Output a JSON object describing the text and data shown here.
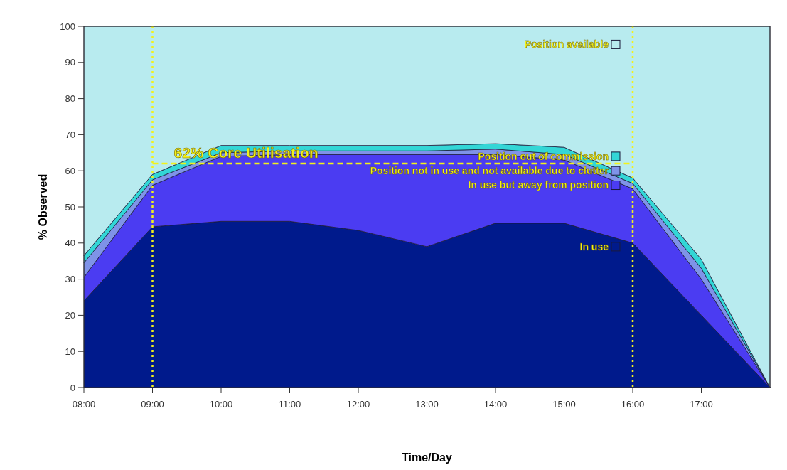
{
  "chart_data": {
    "type": "area",
    "stacked": true,
    "xlabel": "Time/Day",
    "ylabel": "% Observed",
    "x": [
      8,
      9,
      10,
      11,
      12,
      13,
      14,
      15,
      16,
      17,
      18
    ],
    "xlim": [
      8,
      18
    ],
    "xticks": [
      {
        "value": 8,
        "label": "08:00"
      },
      {
        "value": 9,
        "label": "09:00"
      },
      {
        "value": 10,
        "label": "10:00"
      },
      {
        "value": 11,
        "label": "11:00"
      },
      {
        "value": 12,
        "label": "12:00"
      },
      {
        "value": 13,
        "label": "13:00"
      },
      {
        "value": 14,
        "label": "14:00"
      },
      {
        "value": 15,
        "label": "15:00"
      },
      {
        "value": 16,
        "label": "16:00"
      },
      {
        "value": 17,
        "label": "17:00"
      }
    ],
    "ylim": [
      0,
      100
    ],
    "yticks": [
      0,
      10,
      20,
      30,
      40,
      50,
      60,
      70,
      80,
      90,
      100
    ],
    "grid": false,
    "legend": "right",
    "series": [
      {
        "name": "In use",
        "color": "#001a8c",
        "values": [
          24,
          44.5,
          46,
          46,
          43.5,
          39,
          45.5,
          45.5,
          40,
          20,
          0
        ]
      },
      {
        "name": "In use but away from position",
        "color": "#4b3cf2",
        "values": [
          6.5,
          11.5,
          18,
          18.5,
          21,
          25.5,
          19,
          17.5,
          15,
          10,
          0
        ]
      },
      {
        "name": "Position not in use and not available due to clutter",
        "color": "#7f93e8",
        "values": [
          4,
          1.5,
          1,
          1,
          1,
          1,
          1.5,
          1.5,
          1.5,
          3,
          0
        ]
      },
      {
        "name": "Position out of commission",
        "color": "#33d6d6",
        "values": [
          2,
          1.5,
          2,
          1.5,
          1.5,
          1.5,
          1.5,
          2,
          1.5,
          2.5,
          0
        ]
      },
      {
        "name": "Position available",
        "color": "#b8ebef",
        "values": [
          63.5,
          41,
          33,
          33,
          33,
          33,
          32.5,
          33.5,
          42,
          64.5,
          100
        ]
      }
    ],
    "ref_lines": [
      {
        "axis": "x",
        "value": 9,
        "color": "#f2f21a",
        "line_style": "dotted"
      },
      {
        "axis": "x",
        "value": 16,
        "color": "#f2f21a",
        "line_style": "dotted"
      },
      {
        "axis": "y",
        "value": 62,
        "label": "62% Core Utilisation",
        "color": "#f2f21a",
        "line_style": "dashed"
      }
    ]
  }
}
